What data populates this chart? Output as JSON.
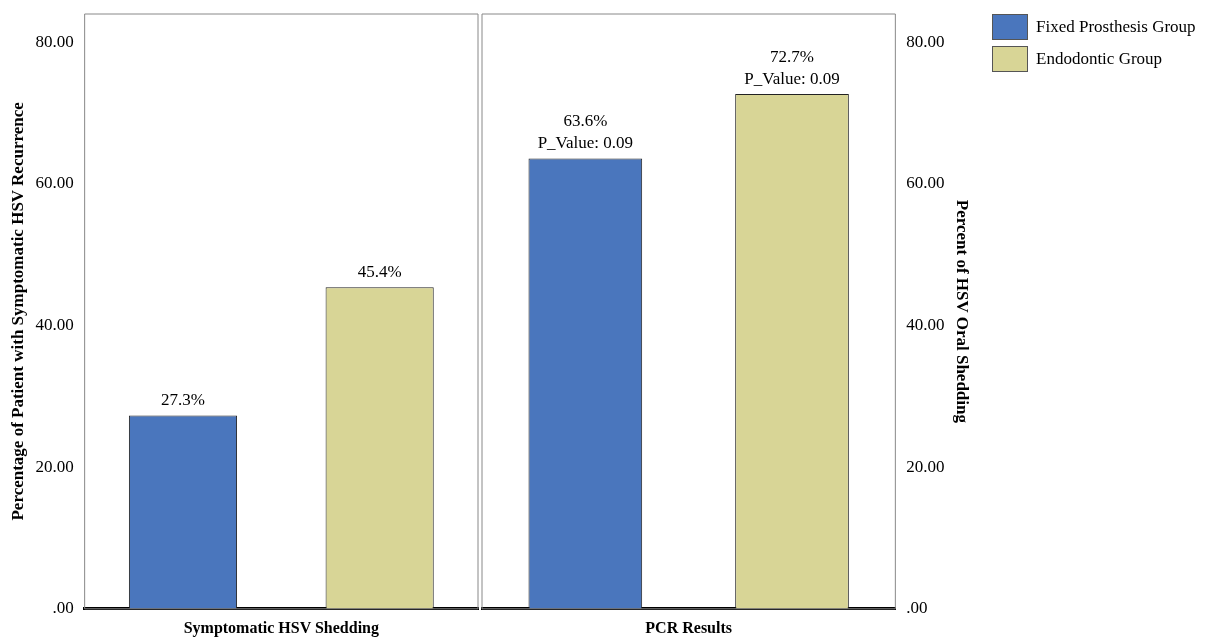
{
  "chart_data": [
    {
      "type": "bar",
      "categories": [
        "Symptomatic HSV Shedding"
      ],
      "ylabel": "Percentage of Patient with Symptomatic HSV Recurrence",
      "ylim": [
        0,
        84
      ],
      "yticks": [
        {
          "value": 0,
          "label": ".00"
        },
        {
          "value": 20,
          "label": "20.00"
        },
        {
          "value": 40,
          "label": "40.00"
        },
        {
          "value": 60,
          "label": "60.00"
        },
        {
          "value": 80,
          "label": "80.00"
        }
      ],
      "grid": false,
      "legend": false,
      "series": [
        {
          "color": "#4a76bd",
          "values": [
            27.3
          ],
          "value_labels": [
            "27.3%"
          ]
        },
        {
          "color": "#d8d596",
          "values": [
            45.4
          ],
          "value_labels": [
            "45.4%"
          ]
        }
      ]
    },
    {
      "type": "bar",
      "categories": [
        "PCR Results"
      ],
      "ylabel": "Percent of HSV Oral Shedding",
      "ylim": [
        0,
        84
      ],
      "yticks": [
        {
          "value": 0,
          "label": ".00"
        },
        {
          "value": 20,
          "label": "20.00"
        },
        {
          "value": 40,
          "label": "40.00"
        },
        {
          "value": 60,
          "label": "60.00"
        },
        {
          "value": 80,
          "label": "80.00"
        }
      ],
      "grid": false,
      "legend": "top right",
      "series": [
        {
          "name": "Fixed Prosthesis Group",
          "color": "#4a76bd",
          "values": [
            63.6
          ],
          "value_labels": [
            "63.6%\nP_Value: 0.09"
          ]
        },
        {
          "name": "Endodontic Group",
          "color": "#d8d596",
          "values": [
            72.7
          ],
          "value_labels": [
            "72.7%\nP_Value: 0.09"
          ]
        }
      ]
    }
  ]
}
